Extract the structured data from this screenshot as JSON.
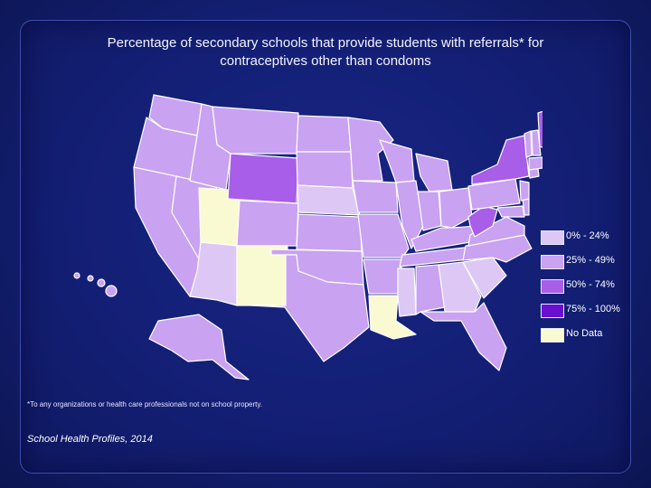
{
  "title": {
    "line1": "Percentage of secondary schools that provide students with referrals* for",
    "line2": "contraceptives other than condoms"
  },
  "legend": [
    {
      "label": "0% - 24%",
      "color": "#ddc8f5"
    },
    {
      "label": "25% - 49%",
      "color": "#c9a2f2"
    },
    {
      "label": "50% - 74%",
      "color": "#a85ee8"
    },
    {
      "label": "75% - 100%",
      "color": "#6a0ed0"
    },
    {
      "label": "No Data",
      "color": "#fafad2"
    }
  ],
  "map_data": {
    "type": "choropleth",
    "region": "United States",
    "highlighted_states": {
      "50% - 74%": [
        "Wyoming",
        "New York",
        "Maine",
        "West Virginia"
      ],
      "0% - 24%": [
        "Arizona",
        "Nebraska",
        "Georgia",
        "Mississippi",
        "South Carolina"
      ],
      "No Data": [
        "Utah",
        "New Mexico",
        "Louisiana"
      ],
      "25% - 49%": "all other states"
    }
  },
  "footnote": "*To any organizations or health care professionals not on school property.",
  "source": "School Health Profiles, 2014"
}
